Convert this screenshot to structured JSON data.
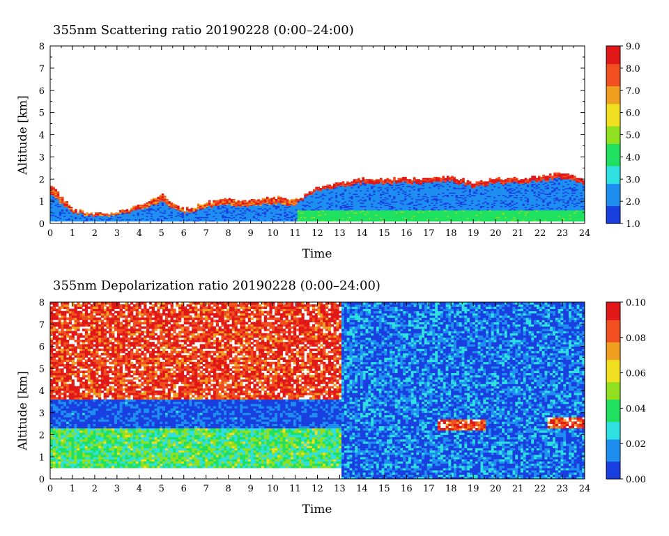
{
  "chart_data": [
    {
      "type": "heatmap",
      "title": "355nm Scattering ratio  20190228 (0:00–24:00)",
      "xlabel": "Time",
      "ylabel": "Altitude [km]",
      "xlim": [
        0,
        24
      ],
      "ylim": [
        0,
        8
      ],
      "x_ticks": [
        "0",
        "1",
        "2",
        "3",
        "4",
        "5",
        "6",
        "7",
        "8",
        "9",
        "10",
        "11",
        "12",
        "13",
        "14",
        "15",
        "16",
        "17",
        "18",
        "19",
        "20",
        "21",
        "22",
        "23",
        "24"
      ],
      "y_ticks": [
        "0",
        "1",
        "2",
        "3",
        "4",
        "5",
        "6",
        "7",
        "8"
      ],
      "colorbar": {
        "min": 1.0,
        "max": 9.0,
        "ticks": [
          "1.0",
          "2.0",
          "3.0",
          "4.0",
          "5.0",
          "6.0",
          "7.0",
          "8.0",
          "9.0"
        ],
        "colors": [
          "#1a3fe0",
          "#1e8ff0",
          "#2ee0e0",
          "#20e060",
          "#90e020",
          "#f0e020",
          "#f0a020",
          "#f05020",
          "#e01818"
        ]
      },
      "layer_top_km": [
        {
          "t": 0.0,
          "h": 1.7
        },
        {
          "t": 0.5,
          "h": 1.2
        },
        {
          "t": 1.0,
          "h": 0.6
        },
        {
          "t": 2.0,
          "h": 0.4
        },
        {
          "t": 3.0,
          "h": 0.5
        },
        {
          "t": 4.0,
          "h": 0.8
        },
        {
          "t": 5.0,
          "h": 1.3
        },
        {
          "t": 6.0,
          "h": 0.6
        },
        {
          "t": 7.0,
          "h": 0.9
        },
        {
          "t": 8.0,
          "h": 1.1
        },
        {
          "t": 9.0,
          "h": 1.0
        },
        {
          "t": 10.0,
          "h": 1.2
        },
        {
          "t": 11.0,
          "h": 1.0
        },
        {
          "t": 12.0,
          "h": 1.6
        },
        {
          "t": 13.0,
          "h": 1.8
        },
        {
          "t": 14.0,
          "h": 2.0
        },
        {
          "t": 15.0,
          "h": 2.0
        },
        {
          "t": 16.0,
          "h": 2.0
        },
        {
          "t": 17.0,
          "h": 2.0
        },
        {
          "t": 18.0,
          "h": 2.1
        },
        {
          "t": 19.0,
          "h": 1.8
        },
        {
          "t": 20.0,
          "h": 2.0
        },
        {
          "t": 21.0,
          "h": 2.0
        },
        {
          "t": 22.0,
          "h": 2.1
        },
        {
          "t": 23.0,
          "h": 2.3
        },
        {
          "t": 24.0,
          "h": 2.0
        }
      ]
    },
    {
      "type": "heatmap",
      "title": "355nm Depolarization ratio  20190228 (0:00–24:00)",
      "xlabel": "Time",
      "ylabel": "Altitude [km]",
      "xlim": [
        0,
        24
      ],
      "ylim": [
        0,
        8
      ],
      "x_ticks": [
        "0",
        "1",
        "2",
        "3",
        "4",
        "5",
        "6",
        "7",
        "8",
        "9",
        "10",
        "11",
        "12",
        "13",
        "14",
        "15",
        "16",
        "17",
        "18",
        "19",
        "20",
        "21",
        "22",
        "23",
        "24"
      ],
      "y_ticks": [
        "0",
        "1",
        "2",
        "3",
        "4",
        "5",
        "6",
        "7",
        "8"
      ],
      "colorbar": {
        "min": 0.0,
        "max": 0.1,
        "ticks": [
          "0.00",
          "0.02",
          "0.04",
          "0.06",
          "0.08",
          "0.10"
        ],
        "colors": [
          "#1a3fe0",
          "#1e8ff0",
          "#2ee0e0",
          "#20e060",
          "#90e020",
          "#f0e020",
          "#f0a020",
          "#f05020",
          "#e01818"
        ]
      },
      "regions": [
        {
          "name": "upper-depolarized",
          "t_start": 0,
          "t_end": 13,
          "h_start": 3.6,
          "h_end": 8,
          "level": 0.09
        },
        {
          "name": "mid-clear-band",
          "t_start": 0,
          "t_end": 13,
          "h_start": 2.3,
          "h_end": 3.6,
          "level": 0.005
        },
        {
          "name": "boundary-layer",
          "t_start": 0,
          "t_end": 13,
          "h_start": 0.5,
          "h_end": 2.3,
          "level": 0.04
        },
        {
          "name": "afternoon-background",
          "t_start": 13,
          "t_end": 24,
          "h_start": 0,
          "h_end": 8,
          "level": 0.012
        },
        {
          "name": "cloud-top-18h",
          "t_start": 17.3,
          "t_end": 19.5,
          "h_start": 2.2,
          "h_end": 2.7,
          "level": 0.09
        },
        {
          "name": "cloud-top-23h",
          "t_start": 22.3,
          "t_end": 24,
          "h_start": 2.3,
          "h_end": 2.8,
          "level": 0.09
        }
      ]
    }
  ]
}
